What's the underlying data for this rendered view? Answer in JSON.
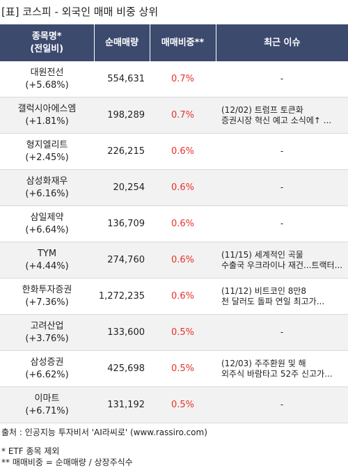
{
  "title": "[표] 코스피 - 외국인 매매 비중 상위",
  "headers": {
    "name_line1": "종목명*",
    "name_line2": "(전일비)",
    "volume": "순매매량",
    "ratio": "매매비중**",
    "issue": "최근 이슈"
  },
  "rows": [
    {
      "name": "대원전선",
      "change": "(+5.68%)",
      "volume": "554,631",
      "ratio": "0.7%",
      "issue1": "-",
      "issue2": ""
    },
    {
      "name": "갤럭시아에스엠",
      "change": "(+1.81%)",
      "volume": "198,289",
      "ratio": "0.7%",
      "issue1": "(12/02) 트럼프 토큰화",
      "issue2": "증권시장 혁신 예고 소식에↑ ..."
    },
    {
      "name": "형지엘리트",
      "change": "(+2.45%)",
      "volume": "226,215",
      "ratio": "0.6%",
      "issue1": "-",
      "issue2": ""
    },
    {
      "name": "삼성화재우",
      "change": "(+6.16%)",
      "volume": "20,254",
      "ratio": "0.6%",
      "issue1": "-",
      "issue2": ""
    },
    {
      "name": "삼일제약",
      "change": "(+6.64%)",
      "volume": "136,709",
      "ratio": "0.6%",
      "issue1": "-",
      "issue2": ""
    },
    {
      "name": "TYM",
      "change": "(+4.44%)",
      "volume": "274,760",
      "ratio": "0.6%",
      "issue1": "(11/15) 세계적인 곡물",
      "issue2": "수출국 우크라이나 재건...트랙터..."
    },
    {
      "name": "한화투자증권",
      "change": "(+7.36%)",
      "volume": "1,272,235",
      "ratio": "0.6%",
      "issue1": "(11/12) 비트코인 8만8",
      "issue2": "천 달러도 돌파 연일 최고가..."
    },
    {
      "name": "고려산업",
      "change": "(+3.76%)",
      "volume": "133,600",
      "ratio": "0.5%",
      "issue1": "-",
      "issue2": ""
    },
    {
      "name": "삼성증권",
      "change": "(+6.62%)",
      "volume": "425,698",
      "ratio": "0.5%",
      "issue1": "(12/03) 주주환원 및 해",
      "issue2": "외주식 바람타고 52주 신고가..."
    },
    {
      "name": "이마트",
      "change": "(+6.71%)",
      "volume": "131,192",
      "ratio": "0.5%",
      "issue1": "-",
      "issue2": ""
    }
  ],
  "footer": {
    "source": "출처 : 인공지능 투자비서 'AI라씨로' (www.rassiro.com)",
    "note1": "* ETF 종목 제외",
    "note2": "** 매매비중 = 순매매량 / 상장주식수"
  }
}
